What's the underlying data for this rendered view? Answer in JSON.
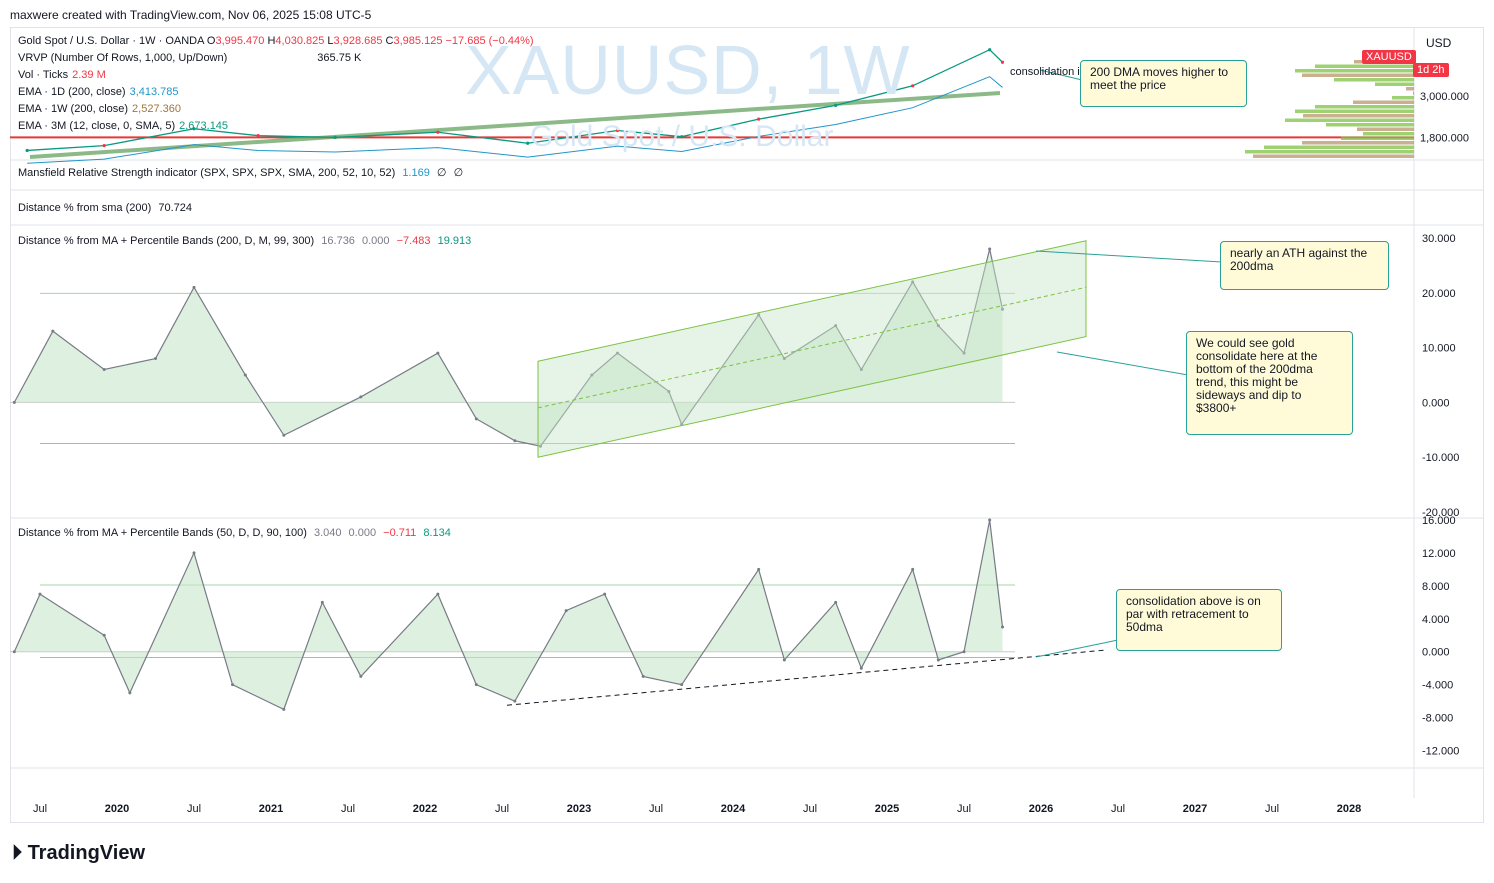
{
  "header": {
    "credit": "maxwere created with TradingView.com, Nov 06, 2025 15:08 UTC-5"
  },
  "watermark": {
    "symbol": "XAUUSD, 1W",
    "name": "Gold Spot / U.S. Dollar"
  },
  "logo": {
    "text": "TradingView"
  },
  "price_pane": {
    "legend": {
      "symbol": "Gold Spot / U.S. Dollar · 1W · OANDA",
      "o_label": "O",
      "o": "3,995.470",
      "h_label": "H",
      "h": "4,030.825",
      "l_label": "L",
      "l": "3,928.685",
      "c_label": "C",
      "c": "3,985.125",
      "chg": "−17.685 (−0.44%)",
      "vrvp": "VRVP (Number Of Rows, 1,000, Up/Down)",
      "vrvp_val": "365.75 K",
      "vol": "Vol · Ticks",
      "vol_val": "2.39 M",
      "ema1": "EMA · 1D (200, close)",
      "ema1_val": "3,413.785",
      "ema2": "EMA · 1W (200, close)",
      "ema2_val": "2,527.360",
      "ema3": "EMA · 3M (12, close, 0, SMA, 5)",
      "ema3_val": "2,673.145"
    },
    "currency": "USD",
    "price_tag": "XAUUSD",
    "countdown": "1d 2h",
    "axis_labels": [
      "3,000.000",
      "1,800.000"
    ],
    "consolidation_text": "consolidation is healthy to trend"
  },
  "mansfield_pane": {
    "legend": "Mansfield Relative Strength indicator (SPX, SPX, SPX, SMA, 200, 52, 10, 52)",
    "value": "1.169",
    "flag1": "∅",
    "flag2": "∅"
  },
  "distance_pane": {
    "legend": "Distance % from sma (200)",
    "value": "70.724"
  },
  "band200_pane": {
    "legend": "Distance % from MA + Percentile Bands (200, D, M, 99, 300)",
    "v1": "16.736",
    "v2": "0.000",
    "v3": "−7.483",
    "v4": "19.913",
    "axis_labels": [
      "30.000",
      "20.000",
      "10.000",
      "0.000",
      "-10.000",
      "-20.000"
    ]
  },
  "band50_pane": {
    "legend": "Distance % from MA + Percentile Bands (50, D, D, 90, 100)",
    "v1": "3.040",
    "v2": "0.000",
    "v3": "−0.711",
    "v4": "8.134",
    "axis_labels": [
      "16.000",
      "12.000",
      "8.000",
      "4.000",
      "0.000",
      "-4.000",
      "-8.000",
      "-12.000"
    ]
  },
  "time_axis": [
    "Jul",
    "2020",
    "Jul",
    "2021",
    "Jul",
    "2022",
    "Jul",
    "2023",
    "Jul",
    "2024",
    "Jul",
    "2025",
    "Jul",
    "2026",
    "Jul",
    "2027",
    "Jul",
    "2028"
  ],
  "annotations": {
    "dma_note": "200 DMA moves higher to meet the price",
    "ath_note": "nearly an ATH against the 200dma",
    "consolidate_note": "We could see gold consolidate here at the bottom of the 200dma trend, this might be sideways and dip to $3800+",
    "retrace_note": "consolidation above is on par with retracement to 50dma"
  },
  "colors": {
    "up": "#089981",
    "down": "#f23645",
    "band_fill": "#c8e6c9",
    "neg_fill": "#ffcdd2",
    "channel": "#7cc243",
    "line": "#787b86"
  },
  "chart_data": [
    {
      "type": "line",
      "name": "price",
      "ylim": [
        1200,
        4400
      ],
      "x": [
        "2019-07",
        "2020-01",
        "2020-08",
        "2021-01",
        "2021-07",
        "2022-03",
        "2022-10",
        "2023-05",
        "2023-10",
        "2024-04",
        "2024-10",
        "2025-04",
        "2025-10",
        "2025-11"
      ],
      "values": [
        1420,
        1560,
        2050,
        1850,
        1800,
        1950,
        1630,
        2000,
        1820,
        2330,
        2730,
        3300,
        4350,
        3985
      ]
    },
    {
      "type": "line",
      "name": "Distance % from MA (200)",
      "ylim": [
        -20,
        30
      ],
      "x": [
        "2019-06",
        "2019-09",
        "2020-01",
        "2020-05",
        "2020-08",
        "2020-12",
        "2021-03",
        "2021-09",
        "2022-03",
        "2022-06",
        "2022-09",
        "2022-11",
        "2023-03",
        "2023-05",
        "2023-09",
        "2023-10",
        "2024-04",
        "2024-06",
        "2024-10",
        "2024-12",
        "2025-04",
        "2025-06",
        "2025-08",
        "2025-10",
        "2025-11"
      ],
      "values": [
        0,
        13,
        6,
        8,
        21,
        5,
        -6,
        1,
        9,
        -3,
        -7,
        -8,
        5,
        9,
        2,
        -4,
        16,
        8,
        14,
        6,
        22,
        14,
        9,
        28,
        17
      ],
      "upper_band": 19.9,
      "lower_band": -7.5
    },
    {
      "type": "line",
      "name": "Distance % from MA (50)",
      "ylim": [
        -14,
        16
      ],
      "x": [
        "2019-06",
        "2019-08",
        "2020-01",
        "2020-03",
        "2020-08",
        "2020-11",
        "2021-03",
        "2021-06",
        "2021-09",
        "2022-03",
        "2022-06",
        "2022-09",
        "2023-01",
        "2023-04",
        "2023-07",
        "2023-10",
        "2024-04",
        "2024-06",
        "2024-10",
        "2024-12",
        "2025-04",
        "2025-06",
        "2025-08",
        "2025-10",
        "2025-11"
      ],
      "values": [
        0,
        7,
        2,
        -5,
        12,
        -4,
        -7,
        6,
        -3,
        7,
        -4,
        -6,
        5,
        7,
        -3,
        -4,
        10,
        -1,
        6,
        -2,
        10,
        -1,
        0,
        16,
        3
      ],
      "upper_band": 8.1,
      "lower_band": -0.7
    }
  ]
}
